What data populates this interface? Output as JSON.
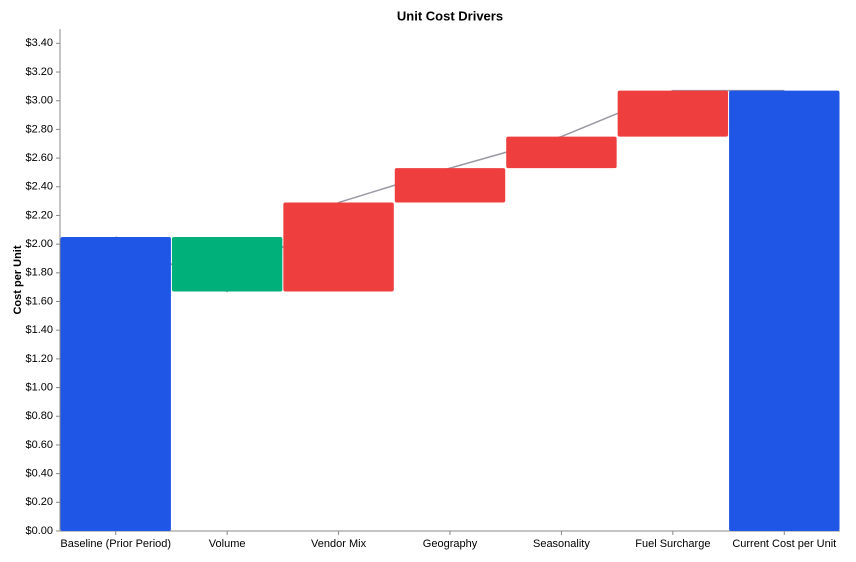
{
  "chart_data": {
    "type": "waterfall",
    "title": "Unit Cost Drivers",
    "y_label": "Cost per Unit",
    "categories": [
      "Baseline (Prior Period)",
      "Volume",
      "Vendor Mix",
      "Geography",
      "Seasonality",
      "Fuel Surcharge",
      "Current Cost per Unit"
    ],
    "values": [
      2.05,
      -0.38,
      0.62,
      0.24,
      0.22,
      0.32,
      3.07
    ],
    "measure": [
      "total",
      "relative",
      "relative",
      "relative",
      "relative",
      "relative",
      "total"
    ],
    "colors": {
      "total": "#1f56e6",
      "increase": "#ef3e3e",
      "decrease": "#00b07a"
    },
    "ylim": [
      0,
      3.5
    ],
    "yticks": [
      {
        "value": 0,
        "label": "$0.00"
      },
      {
        "value": 0.2,
        "label": "$0.20"
      },
      {
        "value": 0.4,
        "label": "$0.40"
      },
      {
        "value": 0.6,
        "label": "$0.60"
      },
      {
        "value": 0.8,
        "label": "$0.80"
      },
      {
        "value": 1,
        "label": "$1.00"
      },
      {
        "value": 1.2,
        "label": "$1.20"
      },
      {
        "value": 1.4,
        "label": "$1.40"
      },
      {
        "value": 1.6,
        "label": "$1.60"
      },
      {
        "value": 1.8,
        "label": "$1.80"
      },
      {
        "value": 2,
        "label": "$2.00"
      },
      {
        "value": 2.2,
        "label": "$2.20"
      },
      {
        "value": 2.4,
        "label": "$2.40"
      },
      {
        "value": 2.6,
        "label": "$2.60"
      },
      {
        "value": 2.8,
        "label": "$2.80"
      },
      {
        "value": 3,
        "label": "$3.00"
      },
      {
        "value": 3.2,
        "label": "$3.20"
      },
      {
        "value": 3.4,
        "label": "$3.40"
      }
    ],
    "grid": false
  }
}
